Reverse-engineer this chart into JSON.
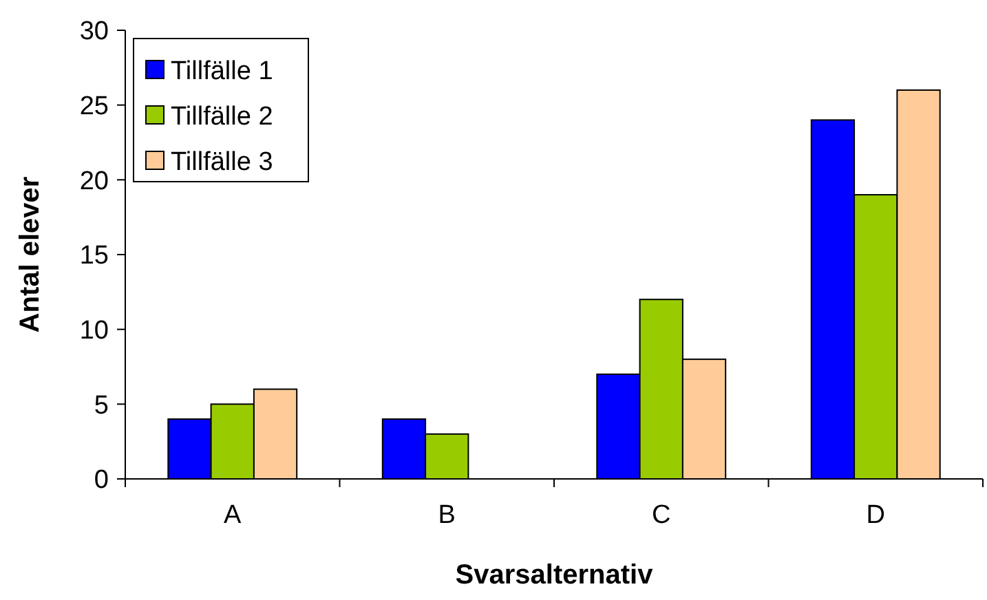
{
  "chart_data": {
    "type": "bar",
    "xlabel": "Svarsalternativ",
    "ylabel": "Antal elever",
    "categories": [
      "A",
      "B",
      "C",
      "D"
    ],
    "series": [
      {
        "name": "Tillfälle 1",
        "color": "#0000ff",
        "values": [
          4,
          4,
          7,
          24
        ]
      },
      {
        "name": "Tillfälle 2",
        "color": "#99cc00",
        "values": [
          5,
          3,
          12,
          19
        ]
      },
      {
        "name": "Tillfälle 3",
        "color": "#ffcc99",
        "values": [
          6,
          0,
          8,
          26
        ]
      }
    ],
    "ylim": [
      0,
      30
    ],
    "yticks": [
      0,
      5,
      10,
      15,
      20,
      25,
      30
    ],
    "grid": false,
    "legend": "top left"
  }
}
